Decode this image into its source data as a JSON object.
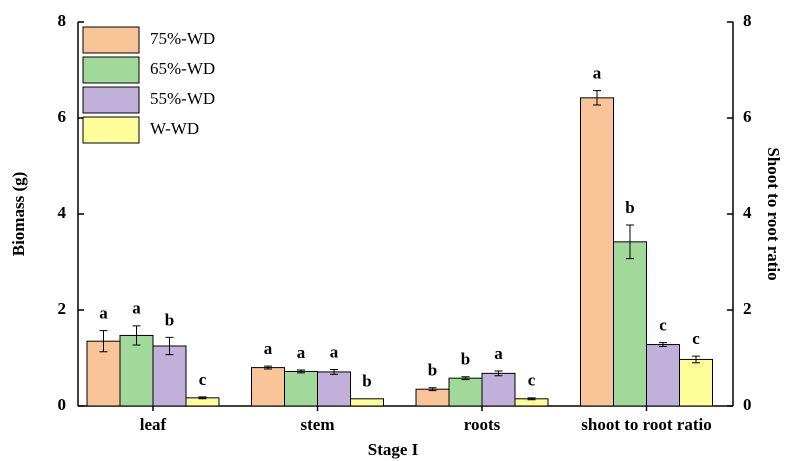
{
  "chart_data": {
    "type": "bar",
    "x_label": "Stage I",
    "y_label": "Biomass (g)",
    "y2_label": "Shoot to root ratio",
    "categories": [
      "leaf",
      "stem",
      "roots",
      "shoot to root ratio"
    ],
    "ylim": [
      0,
      8
    ],
    "yticks": [
      0,
      2,
      4,
      6,
      8
    ],
    "y2lim": [
      0,
      8
    ],
    "y2ticks": [
      0,
      2,
      4,
      6,
      8
    ],
    "legend": "upper left",
    "series": [
      {
        "name": "75%-WD",
        "color": "#f9c598",
        "values": [
          1.35,
          0.8,
          0.35,
          6.42
        ],
        "errors": [
          0.22,
          0.03,
          0.03,
          0.15
        ],
        "labels": [
          "a",
          "a",
          "b",
          "a"
        ]
      },
      {
        "name": "65%-WD",
        "color": "#a0d99a",
        "values": [
          1.47,
          0.72,
          0.58,
          3.42
        ],
        "errors": [
          0.2,
          0.03,
          0.03,
          0.35
        ],
        "labels": [
          "a",
          "a",
          "b",
          "b"
        ]
      },
      {
        "name": "55%-WD",
        "color": "#c1b1da",
        "values": [
          1.25,
          0.71,
          0.68,
          1.28
        ],
        "errors": [
          0.18,
          0.05,
          0.05,
          0.04
        ],
        "labels": [
          "b",
          "a",
          "a",
          "c"
        ]
      },
      {
        "name": "W-WD",
        "color": "#fdfd9a",
        "values": [
          0.17,
          0.15,
          0.15,
          0.97
        ],
        "errors": [
          0.02,
          null,
          0.02,
          0.07
        ],
        "labels": [
          "c",
          "b",
          "c",
          "c"
        ]
      }
    ]
  }
}
